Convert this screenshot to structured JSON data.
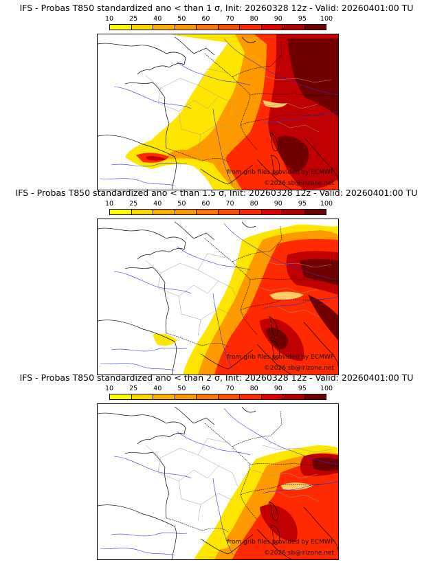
{
  "colorbar": {
    "ticks": [
      "10",
      "25",
      "40",
      "50",
      "60",
      "70",
      "80",
      "90",
      "95",
      "100"
    ],
    "colors": [
      "#ffff00",
      "#ffd700",
      "#ffb000",
      "#ff9900",
      "#ff7700",
      "#ff5000",
      "#ff2a00",
      "#e00000",
      "#b00000",
      "#700000"
    ]
  },
  "panels": [
    {
      "title": "IFS - Probas T850  standardized ano < than 1 σ, Init: 20260328 12z - Valid: 20260401:00 TU",
      "credit_source": "from grib files provided by ECMWF",
      "credit_site": "©2026 sb@irizone.net"
    },
    {
      "title": "IFS - Probas T850  standardized ano < than 1.5 σ, Init: 20260328 12z - Valid: 20260401:00 TU",
      "credit_source": "from grib files provided by ECMWF",
      "credit_site": "©2026 sb@irizone.net"
    },
    {
      "title": "IFS - Probas T850  standardized ano < than 2 σ, Init: 20260328 12z - Valid: 20260401:00 TU",
      "credit_source": "from grib files provided by ECMWF",
      "credit_site": "©2026 sb@irizone.net"
    }
  ]
}
